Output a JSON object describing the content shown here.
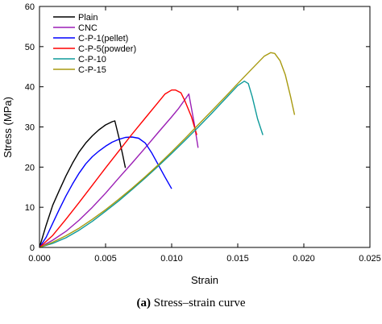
{
  "caption": {
    "letter": "(a)",
    "text": "Stress–strain curve"
  },
  "chart_data": {
    "type": "line",
    "title": "",
    "xlabel": "Strain",
    "ylabel": "Stress (MPa)",
    "xlim": [
      0,
      0.025
    ],
    "ylim": [
      0,
      60
    ],
    "xticks": [
      "0.000",
      "0.005",
      "0.010",
      "0.015",
      "0.020",
      "0.025"
    ],
    "yticks": [
      "0",
      "10",
      "20",
      "30",
      "40",
      "50",
      "60"
    ],
    "grid": false,
    "legend_position": "top-left",
    "series": [
      {
        "name": "Plain",
        "color": "#000000",
        "x": [
          0,
          0.0005,
          0.001,
          0.0015,
          0.002,
          0.0025,
          0.003,
          0.0035,
          0.004,
          0.0045,
          0.005,
          0.0055,
          0.0057,
          0.006,
          0.0063,
          0.0065
        ],
        "y": [
          0,
          5.5,
          10.5,
          14.2,
          17.8,
          21.0,
          23.8,
          26.0,
          27.8,
          29.3,
          30.5,
          31.3,
          31.5,
          27.5,
          23.0,
          19.8
        ]
      },
      {
        "name": "CNC",
        "color": "#9b1fb5",
        "x": [
          0,
          0.001,
          0.002,
          0.003,
          0.004,
          0.005,
          0.006,
          0.007,
          0.008,
          0.009,
          0.01,
          0.0105,
          0.011,
          0.0113,
          0.0117,
          0.012
        ],
        "y": [
          0,
          1.8,
          4.0,
          6.8,
          10.0,
          13.5,
          17.3,
          21.0,
          24.8,
          28.7,
          32.5,
          34.5,
          36.8,
          38.2,
          31.0,
          24.8
        ]
      },
      {
        "name": "C-P-1(pellet)",
        "color": "#0000ff",
        "x": [
          0,
          0.0005,
          0.001,
          0.0015,
          0.002,
          0.0025,
          0.003,
          0.0035,
          0.004,
          0.0045,
          0.005,
          0.0055,
          0.006,
          0.0065,
          0.007,
          0.0075,
          0.008,
          0.0085,
          0.009,
          0.0095,
          0.01
        ],
        "y": [
          0,
          2.5,
          6.0,
          9.5,
          12.8,
          15.8,
          18.5,
          20.8,
          22.6,
          24.0,
          25.2,
          26.2,
          26.9,
          27.4,
          27.5,
          27.2,
          26.0,
          23.5,
          20.5,
          17.5,
          14.6
        ]
      },
      {
        "name": "C-P-5(powder)",
        "color": "#ff0000",
        "x": [
          0,
          0.001,
          0.002,
          0.003,
          0.004,
          0.005,
          0.006,
          0.007,
          0.008,
          0.009,
          0.0095,
          0.01,
          0.0103,
          0.0107,
          0.011,
          0.0115,
          0.0119
        ],
        "y": [
          0,
          3.0,
          7.0,
          11.2,
          15.5,
          19.8,
          24.0,
          28.2,
          32.2,
          36.2,
          38.2,
          39.2,
          39.2,
          38.5,
          36.5,
          32.5,
          28.0
        ]
      },
      {
        "name": "C-P-10",
        "color": "#0e9a9a",
        "x": [
          0,
          0.001,
          0.002,
          0.003,
          0.004,
          0.005,
          0.006,
          0.007,
          0.008,
          0.009,
          0.01,
          0.011,
          0.012,
          0.013,
          0.014,
          0.015,
          0.0155,
          0.0158,
          0.0161,
          0.0165,
          0.0169
        ],
        "y": [
          0,
          1.0,
          2.4,
          4.3,
          6.5,
          9.0,
          11.6,
          14.4,
          17.3,
          20.3,
          23.4,
          26.6,
          29.9,
          33.3,
          36.8,
          40.3,
          41.4,
          40.8,
          37.5,
          32.0,
          28.0
        ]
      },
      {
        "name": "C-P-15",
        "color": "#a89a10",
        "x": [
          0,
          0.001,
          0.002,
          0.003,
          0.004,
          0.005,
          0.006,
          0.007,
          0.008,
          0.009,
          0.01,
          0.011,
          0.012,
          0.013,
          0.014,
          0.015,
          0.016,
          0.017,
          0.0175,
          0.0178,
          0.0182,
          0.0186,
          0.019,
          0.0193
        ],
        "y": [
          0,
          1.3,
          2.9,
          4.8,
          7.0,
          9.4,
          12.0,
          14.7,
          17.6,
          20.6,
          23.8,
          27.1,
          30.5,
          33.9,
          37.3,
          40.8,
          44.2,
          47.6,
          48.5,
          48.3,
          46.5,
          43.0,
          37.5,
          33.0
        ]
      }
    ]
  }
}
